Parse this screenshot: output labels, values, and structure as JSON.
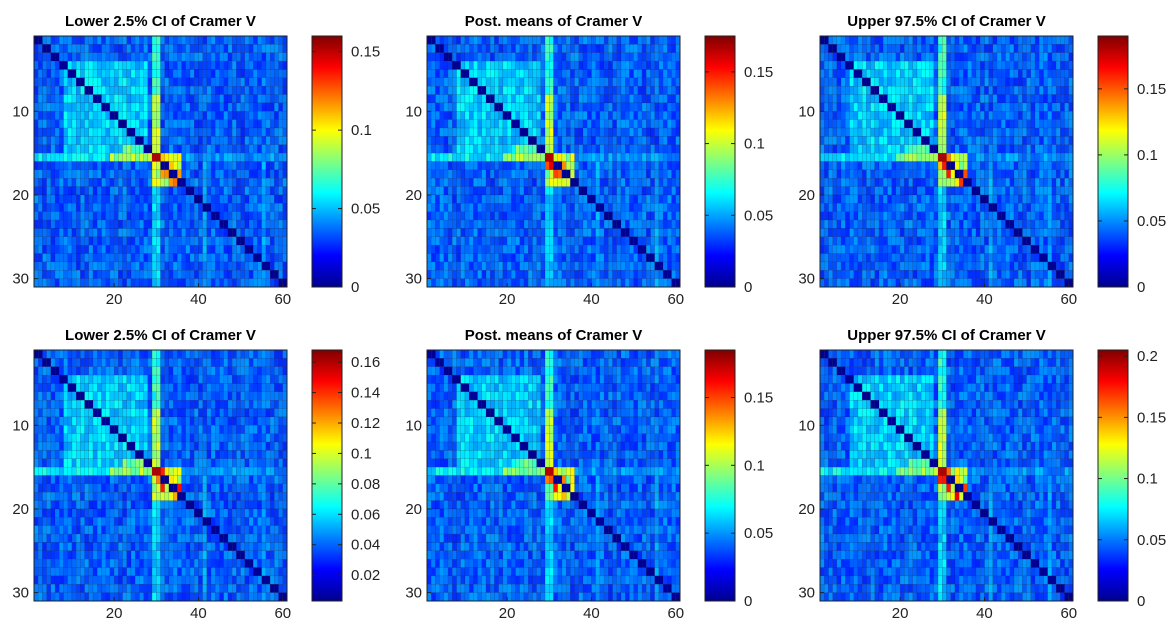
{
  "chart_data": [
    {
      "type": "heatmap",
      "title": "Lower 2.5% CI of Cramer V",
      "x_ticks": [
        "20",
        "40",
        "60"
      ],
      "y_ticks": [
        "10",
        "20",
        "30"
      ],
      "xlim": [
        1,
        61
      ],
      "ylim": [
        1,
        31
      ],
      "grid": true,
      "colormap": "jet",
      "color_range": [
        0,
        0.16
      ],
      "colorbar_ticks": [
        "0",
        "0.05",
        "0.1",
        "0.15"
      ],
      "colorbar_tick_values": [
        0,
        0.05,
        0.1,
        0.15
      ]
    },
    {
      "type": "heatmap",
      "title": "Post. means of Cramer V",
      "x_ticks": [
        "20",
        "40",
        "60"
      ],
      "y_ticks": [
        "10",
        "20",
        "30"
      ],
      "xlim": [
        1,
        61
      ],
      "ylim": [
        1,
        31
      ],
      "grid": true,
      "colormap": "jet",
      "color_range": [
        0,
        0.175
      ],
      "colorbar_ticks": [
        "0",
        "0.05",
        "0.1",
        "0.15"
      ],
      "colorbar_tick_values": [
        0,
        0.05,
        0.1,
        0.15
      ]
    },
    {
      "type": "heatmap",
      "title": "Upper 97.5% CI of Cramer V",
      "x_ticks": [
        "20",
        "40",
        "60"
      ],
      "y_ticks": [
        "10",
        "20",
        "30"
      ],
      "xlim": [
        1,
        61
      ],
      "ylim": [
        1,
        31
      ],
      "grid": true,
      "colormap": "jet",
      "color_range": [
        0,
        0.19
      ],
      "colorbar_ticks": [
        "0",
        "0.05",
        "0.1",
        "0.15"
      ],
      "colorbar_tick_values": [
        0,
        0.05,
        0.1,
        0.15
      ]
    },
    {
      "type": "heatmap",
      "title": "Lower 2.5% CI of Cramer V",
      "x_ticks": [
        "20",
        "40",
        "60"
      ],
      "y_ticks": [
        "10",
        "20",
        "30"
      ],
      "xlim": [
        1,
        61
      ],
      "ylim": [
        1,
        31
      ],
      "grid": true,
      "colormap": "jet",
      "color_range": [
        0.003,
        0.168
      ],
      "colorbar_ticks": [
        "0.02",
        "0.04",
        "0.06",
        "0.08",
        "0.1",
        "0.12",
        "0.14",
        "0.16"
      ],
      "colorbar_tick_values": [
        0.02,
        0.04,
        0.06,
        0.08,
        0.1,
        0.12,
        0.14,
        0.16
      ]
    },
    {
      "type": "heatmap",
      "title": "Post. means of Cramer V",
      "x_ticks": [
        "20",
        "40",
        "60"
      ],
      "y_ticks": [
        "10",
        "20",
        "30"
      ],
      "xlim": [
        1,
        61
      ],
      "ylim": [
        1,
        31
      ],
      "grid": true,
      "colormap": "jet",
      "color_range": [
        0,
        0.185
      ],
      "colorbar_ticks": [
        "0",
        "0.05",
        "0.1",
        "0.15"
      ],
      "colorbar_tick_values": [
        0,
        0.05,
        0.1,
        0.15
      ]
    },
    {
      "type": "heatmap",
      "title": "Upper 97.5% CI of Cramer V",
      "x_ticks": [
        "20",
        "40",
        "60"
      ],
      "y_ticks": [
        "10",
        "20",
        "30"
      ],
      "xlim": [
        1,
        61
      ],
      "ylim": [
        1,
        31
      ],
      "grid": true,
      "colormap": "jet",
      "color_range": [
        0,
        0.205
      ],
      "colorbar_ticks": [
        "0",
        "0.05",
        "0.1",
        "0.15",
        "0.2"
      ],
      "colorbar_tick_values": [
        0,
        0.05,
        0.1,
        0.15,
        0.2
      ]
    }
  ]
}
